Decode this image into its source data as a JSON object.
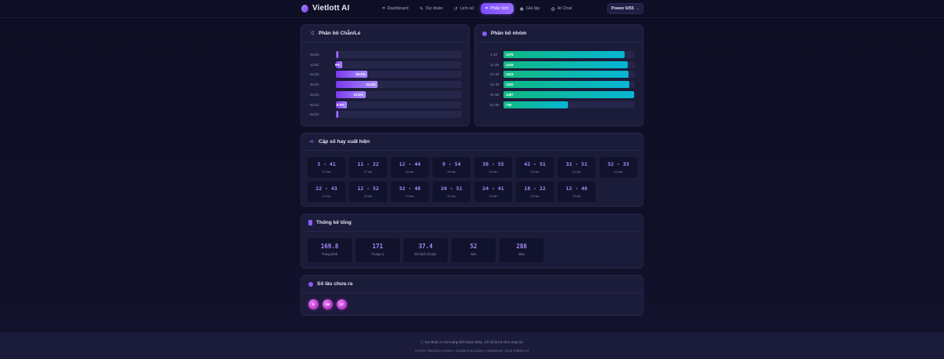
{
  "header": {
    "brand": "Vietlott AI",
    "nav": [
      {
        "label": "Dashboard",
        "icon": "chart-line-icon",
        "glyph": "⌗",
        "active": false
      },
      {
        "label": "Dự đoán",
        "icon": "wand-icon",
        "glyph": "✎",
        "active": false
      },
      {
        "label": "Lịch sử",
        "icon": "history-icon",
        "glyph": "↺",
        "active": false
      },
      {
        "label": "Phân tích",
        "icon": "analytics-icon",
        "glyph": "⌗",
        "active": true
      },
      {
        "label": "Giả lập",
        "icon": "simulate-icon",
        "glyph": "◉",
        "active": false
      },
      {
        "label": "AI Chat",
        "icon": "robot-icon",
        "glyph": "◍",
        "active": false
      }
    ],
    "game_select": {
      "value": "Power 6/55"
    }
  },
  "odd_even": {
    "title": "Phân bố Chẵn/Lẻ",
    "icon": "shuffle-icon",
    "rows": [
      {
        "label": "0L/6C",
        "percent": 1.2,
        "text": ""
      },
      {
        "label": "1L/5C",
        "percent": 5,
        "text": "5%"
      },
      {
        "label": "2L/4C",
        "percent": 25.2,
        "text": "25.2%"
      },
      {
        "label": "3L/3C",
        "percent": 33.4,
        "text": "33.4%"
      },
      {
        "label": "4L/2C",
        "percent": 23.5,
        "text": "23.5%"
      },
      {
        "label": "5L/1C",
        "percent": 8.5,
        "text": "8.5%"
      },
      {
        "label": "6L/0C",
        "percent": 1.2,
        "text": ""
      }
    ]
  },
  "groups": {
    "title": "Phân bố nhóm",
    "icon": "cube-icon",
    "max": 1487,
    "rows": [
      {
        "label": "1-10",
        "value": 1379
      },
      {
        "label": "11-20",
        "value": 1416
      },
      {
        "label": "21-30",
        "value": 1423
      },
      {
        "label": "31-40",
        "value": 1432
      },
      {
        "label": "41-50",
        "value": 1487
      },
      {
        "label": "51-55",
        "value": 735
      }
    ]
  },
  "pairs": {
    "title": "Cặp số hay xuất hiện",
    "icon": "link-icon",
    "items": [
      {
        "pair": "3 - 41",
        "count": "27 lần"
      },
      {
        "pair": "11 - 22",
        "count": "27 lần"
      },
      {
        "pair": "12 - 44",
        "count": "25 lần"
      },
      {
        "pair": "9 - 54",
        "count": "25 lần"
      },
      {
        "pair": "38 - 55",
        "count": "25 lần"
      },
      {
        "pair": "42 - 51",
        "count": "25 lần"
      },
      {
        "pair": "32 - 51",
        "count": "24 lần"
      },
      {
        "pair": "32 - 33",
        "count": "24 lần"
      },
      {
        "pair": "22 - 43",
        "count": "24 lần"
      },
      {
        "pair": "12 - 52",
        "count": "24 lần"
      },
      {
        "pair": "32 - 48",
        "count": "24 lần"
      },
      {
        "pair": "20 - 51",
        "count": "23 lần"
      },
      {
        "pair": "24 - 41",
        "count": "23 lần"
      },
      {
        "pair": "18 - 22",
        "count": "23 lần"
      },
      {
        "pair": "12 - 48",
        "count": "23 lần"
      }
    ]
  },
  "sum_stats": {
    "title": "Thống kê tổng",
    "icon": "calculator-icon",
    "items": [
      {
        "value": "169.8",
        "label": "Trung bình"
      },
      {
        "value": "171",
        "label": "Trung vị"
      },
      {
        "value": "37.4",
        "label": "Độ lệch chuẩn"
      },
      {
        "value": "52",
        "label": "Min"
      },
      {
        "value": "288",
        "label": "Max"
      }
    ]
  },
  "cold": {
    "title": "Số lâu chưa ra",
    "icon": "clock-icon",
    "numbers": [
      "6",
      "49",
      "47"
    ]
  },
  "footer": {
    "note": "ⓘ Dự đoán AI chỉ mang tính tham khảo. Xổ số là trò chơi may rủi.",
    "models": "LSTM • Random Forest • Gradient Boosting • Statistical • Digit Pattern AI"
  },
  "colors": {
    "accent": "#7c4dff",
    "purple_bar": "#8b5cf6",
    "teal_start": "#10b981",
    "teal_end": "#06b6d4",
    "ball": "#d946ef",
    "card_bg": "#1b1b3a",
    "page_bg": "#0e0f24"
  }
}
